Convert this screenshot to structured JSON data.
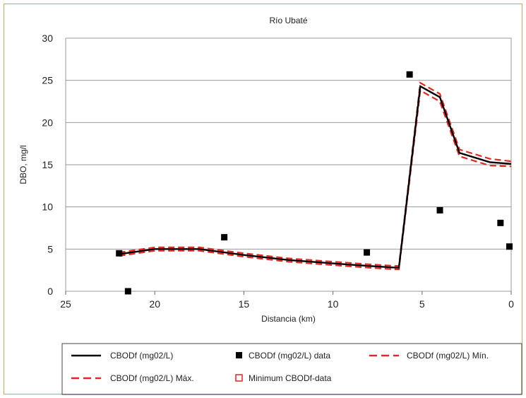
{
  "chart_data": {
    "type": "line",
    "title": "Río Ubaté",
    "xlabel": "Distancia (km)",
    "ylabel": "DBO, mg/l",
    "xlim": [
      25,
      0
    ],
    "ylim": [
      0,
      30
    ],
    "x_reversed": true,
    "x_ticks": [
      25,
      20,
      15,
      10,
      5,
      0
    ],
    "y_ticks": [
      0,
      5,
      10,
      15,
      20,
      25,
      30
    ],
    "grid": "horizontal",
    "legend_position": "bottom",
    "series": [
      {
        "name": "CBODf (mg02/L)",
        "style": "line",
        "color": "#000000",
        "x": [
          22,
          20,
          17.5,
          15,
          12.5,
          10,
          8,
          6.5,
          6.3,
          5.1,
          4,
          2.9,
          1.2,
          0
        ],
        "y": [
          4.4,
          5.0,
          5.0,
          4.3,
          3.7,
          3.3,
          3.0,
          2.8,
          2.8,
          24.3,
          23.0,
          16.4,
          15.3,
          15.1
        ]
      },
      {
        "name": "CBODf (mg02/L) data",
        "style": "markers",
        "color": "#000000",
        "x": [
          22,
          21.5,
          16.1,
          8.1,
          5.7,
          4.0,
          0.6,
          0.1
        ],
        "y": [
          4.5,
          0.0,
          6.4,
          4.6,
          25.7,
          9.6,
          8.1,
          5.3
        ]
      },
      {
        "name": "CBODf (mg02/L) Mín.",
        "style": "dashed",
        "color": "#e8251e",
        "x": [
          22,
          20,
          17.5,
          15,
          12.5,
          10,
          8,
          6.5,
          6.3,
          5.1,
          4,
          2.9,
          1.2,
          0
        ],
        "y": [
          4.2,
          4.8,
          4.8,
          4.1,
          3.5,
          3.1,
          2.8,
          2.6,
          2.6,
          23.8,
          22.5,
          16.0,
          14.9,
          14.8
        ]
      },
      {
        "name": "CBODf (mg02/L) Máx.",
        "style": "dashed",
        "color": "#e8251e",
        "x": [
          22,
          20,
          17.5,
          15,
          12.5,
          10,
          8,
          6.5,
          6.3,
          5.1,
          4,
          2.9,
          1.2,
          0
        ],
        "y": [
          4.6,
          5.2,
          5.2,
          4.5,
          3.9,
          3.5,
          3.2,
          3.0,
          3.0,
          24.7,
          23.4,
          16.8,
          15.7,
          15.4
        ]
      },
      {
        "name": "Minimum CBODf-data",
        "style": "open-markers",
        "color": "#e8251e",
        "x": [],
        "y": []
      }
    ]
  }
}
